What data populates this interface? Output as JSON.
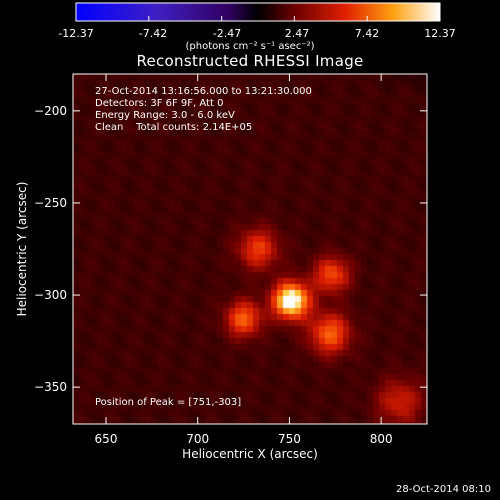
{
  "colorbar": {
    "ticks": [
      "-12.37",
      "-7.42",
      "-2.47",
      "2.47",
      "7.42",
      "12.37"
    ],
    "units_line": "(photons cm⁻² s⁻¹ asec⁻²)",
    "min": -12.37,
    "max": 12.37
  },
  "title": "Reconstructed RHESSI Image",
  "info": {
    "time_range": "27-Oct-2014 13:16:56.000 to 13:21:30.000",
    "detectors": "Detectors: 3F 6F 9F, Att 0",
    "energy": "Energy Range: 3.0 - 6.0 keV",
    "clean": "Clean    Total counts: 2.14E+05"
  },
  "peak_label": "Position of Peak = [751,-303]",
  "footer": "28-Oct-2014 08:10",
  "chart_data": {
    "type": "heatmap",
    "title": "Reconstructed RHESSI Image",
    "xlabel": "Heliocentric X (arcsec)",
    "ylabel": "Heliocentric Y (arcsec)",
    "xlim": [
      632,
      825
    ],
    "ylim": [
      -370,
      -180
    ],
    "xticks": [
      650,
      700,
      750,
      800
    ],
    "yticks": [
      -200,
      -250,
      -300,
      -350
    ],
    "peak": {
      "x": 751,
      "y": -303
    },
    "sources": [
      {
        "x": 751,
        "y": -303,
        "amp": 1.0,
        "sigma": 7
      },
      {
        "x": 725,
        "y": -313,
        "amp": 0.55,
        "sigma": 7
      },
      {
        "x": 772,
        "y": -321,
        "amp": 0.55,
        "sigma": 8
      },
      {
        "x": 773,
        "y": -289,
        "amp": 0.5,
        "sigma": 7
      },
      {
        "x": 733,
        "y": -275,
        "amp": 0.45,
        "sigma": 8
      },
      {
        "x": 810,
        "y": -358,
        "amp": 0.35,
        "sigma": 9
      }
    ]
  }
}
